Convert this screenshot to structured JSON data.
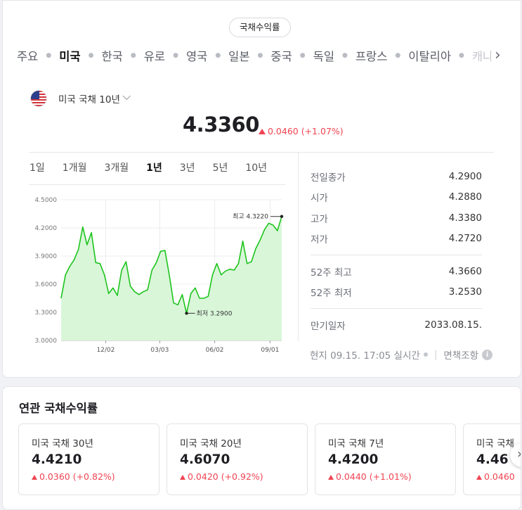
{
  "header": {
    "pill_label": "국채수익률"
  },
  "country_tabs": [
    {
      "label": "주요",
      "active": false
    },
    {
      "label": "미국",
      "active": true
    },
    {
      "label": "한국",
      "active": false
    },
    {
      "label": "유로",
      "active": false
    },
    {
      "label": "영국",
      "active": false
    },
    {
      "label": "일본",
      "active": false
    },
    {
      "label": "중국",
      "active": false
    },
    {
      "label": "독일",
      "active": false
    },
    {
      "label": "프랑스",
      "active": false
    },
    {
      "label": "이탈리아",
      "active": false
    },
    {
      "label": "캐나다",
      "active": false
    }
  ],
  "tab_next_icon": "chevron-right-icon",
  "bond": {
    "name": "미국 국채 10년",
    "price": "4.3360",
    "change": "0.0460 (+1.07%)",
    "direction": "up"
  },
  "periods": [
    {
      "label": "1일",
      "active": false
    },
    {
      "label": "1개월",
      "active": false
    },
    {
      "label": "3개월",
      "active": false
    },
    {
      "label": "1년",
      "active": true
    },
    {
      "label": "3년",
      "active": false
    },
    {
      "label": "5년",
      "active": false
    },
    {
      "label": "10년",
      "active": false
    }
  ],
  "chart_data": {
    "type": "area",
    "title": "",
    "xlabel": "",
    "ylabel": "",
    "ylim": [
      3.0,
      4.5
    ],
    "yticks": [
      "4.5000",
      "4.2000",
      "3.9000",
      "3.6000",
      "3.3000",
      "3.0000"
    ],
    "xticks": [
      "12/02",
      "03/03",
      "06/02",
      "09/01"
    ],
    "xtick_positions": [
      10.3,
      22.8,
      35.5,
      48.3
    ],
    "x_count": 51,
    "values": [
      3.45,
      3.7,
      3.79,
      3.86,
      3.97,
      4.21,
      4.02,
      4.15,
      3.83,
      3.82,
      3.7,
      3.5,
      3.56,
      3.48,
      3.75,
      3.84,
      3.58,
      3.52,
      3.49,
      3.52,
      3.54,
      3.75,
      3.83,
      3.95,
      3.96,
      3.7,
      3.4,
      3.38,
      3.49,
      3.29,
      3.5,
      3.56,
      3.45,
      3.45,
      3.47,
      3.7,
      3.82,
      3.7,
      3.74,
      3.76,
      3.75,
      3.82,
      4.06,
      3.82,
      3.84,
      3.98,
      4.07,
      4.18,
      4.25,
      4.23,
      4.17
    ],
    "final_value": 4.322,
    "annotations": {
      "high": {
        "label": "최고 4.3220",
        "value": 4.322
      },
      "low": {
        "label": "최저 3.2900",
        "value": 3.29
      }
    },
    "line_color": "#1ec41e",
    "fill_color": "#d9f6d9",
    "grid": true
  },
  "stats": {
    "group1": [
      {
        "label": "전일종가",
        "value": "4.2900"
      },
      {
        "label": "시가",
        "value": "4.2880"
      },
      {
        "label": "고가",
        "value": "4.3380"
      },
      {
        "label": "저가",
        "value": "4.2720"
      }
    ],
    "group2": [
      {
        "label": "52주 최고",
        "value": "4.3660"
      },
      {
        "label": "52주 최저",
        "value": "3.2530"
      }
    ],
    "group3": [
      {
        "label": "만기일자",
        "value": "2033.08.15."
      }
    ]
  },
  "footer": {
    "timestamp": "현지 09.15. 17:05 실시간",
    "disclaimer": "면책조항"
  },
  "related": {
    "title": "연관 국채수익률",
    "items": [
      {
        "name": "미국 국채 30년",
        "price": "4.4210",
        "change": "0.0360 (+0.82%)"
      },
      {
        "name": "미국 국채 20년",
        "price": "4.6070",
        "change": "0.0420 (+0.92%)"
      },
      {
        "name": "미국 국채 7년",
        "price": "4.4200",
        "change": "0.0440 (+1.01%)"
      },
      {
        "name": "미국 국채",
        "price": "4.46",
        "change": "0.0460"
      }
    ]
  },
  "colors": {
    "up": "#f04452",
    "accent_line": "#1ec41e"
  }
}
